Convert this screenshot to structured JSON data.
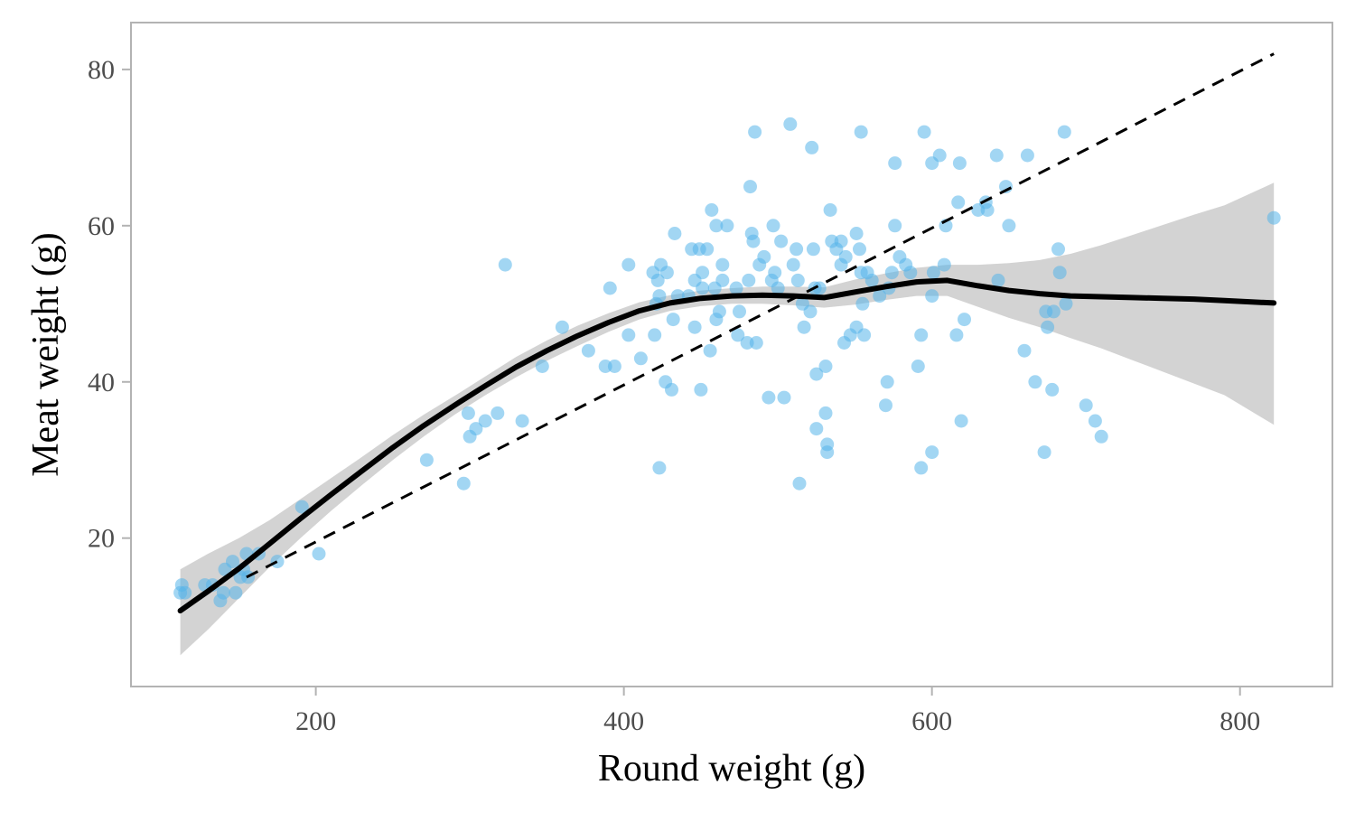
{
  "chart_data": {
    "type": "scatter",
    "title": "",
    "xlabel": "Round weight (g)",
    "ylabel": "Meat weight (g)",
    "xlim": [
      80,
      860
    ],
    "ylim": [
      1,
      86
    ],
    "xticks": [
      200,
      400,
      600,
      800
    ],
    "yticks": [
      20,
      40,
      60,
      80
    ],
    "grid": false,
    "legend": "none",
    "colors": {
      "points": "#56B4E9",
      "smooth": "#000000",
      "band": "#d3d3d3",
      "panel_border": "#b3b3b3",
      "tick_text": "#4d4d4d"
    },
    "points": [
      [
        112,
        13
      ],
      [
        113,
        14
      ],
      [
        115,
        13
      ],
      [
        128,
        14
      ],
      [
        133,
        14
      ],
      [
        138,
        12
      ],
      [
        140,
        13
      ],
      [
        141,
        16
      ],
      [
        146,
        17
      ],
      [
        148,
        13
      ],
      [
        151,
        15
      ],
      [
        153,
        16
      ],
      [
        155,
        18
      ],
      [
        156,
        15
      ],
      [
        163,
        18
      ],
      [
        175,
        17
      ],
      [
        191,
        24
      ],
      [
        202,
        18
      ],
      [
        272,
        30
      ],
      [
        296,
        27
      ],
      [
        299,
        36
      ],
      [
        300,
        33
      ],
      [
        304,
        34
      ],
      [
        310,
        35
      ],
      [
        318,
        36
      ],
      [
        323,
        55
      ],
      [
        334,
        35
      ],
      [
        347,
        42
      ],
      [
        360,
        47
      ],
      [
        377,
        44
      ],
      [
        388,
        42
      ],
      [
        391,
        52
      ],
      [
        394,
        42
      ],
      [
        403,
        46
      ],
      [
        403,
        55
      ],
      [
        411,
        43
      ],
      [
        419,
        54
      ],
      [
        420,
        46
      ],
      [
        421,
        50
      ],
      [
        422,
        53
      ],
      [
        423,
        51
      ],
      [
        423,
        29
      ],
      [
        424,
        55
      ],
      [
        427,
        40
      ],
      [
        428,
        54
      ],
      [
        431,
        39
      ],
      [
        432,
        48
      ],
      [
        433,
        59
      ],
      [
        435,
        51
      ],
      [
        442,
        51
      ],
      [
        444,
        57
      ],
      [
        446,
        53
      ],
      [
        446,
        47
      ],
      [
        449,
        57
      ],
      [
        450,
        39
      ],
      [
        451,
        54
      ],
      [
        451,
        52
      ],
      [
        454,
        57
      ],
      [
        456,
        44
      ],
      [
        457,
        62
      ],
      [
        459,
        52
      ],
      [
        460,
        48
      ],
      [
        460,
        60
      ],
      [
        462,
        49
      ],
      [
        464,
        55
      ],
      [
        464,
        53
      ],
      [
        467,
        60
      ],
      [
        473,
        52
      ],
      [
        474,
        46
      ],
      [
        475,
        49
      ],
      [
        480,
        45
      ],
      [
        481,
        53
      ],
      [
        482,
        65
      ],
      [
        483,
        59
      ],
      [
        484,
        58
      ],
      [
        485,
        72
      ],
      [
        486,
        45
      ],
      [
        488,
        55
      ],
      [
        491,
        56
      ],
      [
        494,
        38
      ],
      [
        496,
        53
      ],
      [
        497,
        60
      ],
      [
        498,
        54
      ],
      [
        500,
        52
      ],
      [
        502,
        58
      ],
      [
        504,
        38
      ],
      [
        508,
        73
      ],
      [
        510,
        55
      ],
      [
        512,
        57
      ],
      [
        513,
        53
      ],
      [
        514,
        27
      ],
      [
        516,
        50
      ],
      [
        517,
        47
      ],
      [
        521,
        49
      ],
      [
        522,
        70
      ],
      [
        523,
        57
      ],
      [
        524,
        52
      ],
      [
        525,
        34
      ],
      [
        525,
        41
      ],
      [
        527,
        52
      ],
      [
        531,
        36
      ],
      [
        531,
        42
      ],
      [
        532,
        31
      ],
      [
        532,
        32
      ],
      [
        534,
        62
      ],
      [
        535,
        58
      ],
      [
        538,
        57
      ],
      [
        541,
        58
      ],
      [
        541,
        55
      ],
      [
        543,
        45
      ],
      [
        544,
        56
      ],
      [
        547,
        46
      ],
      [
        551,
        47
      ],
      [
        551,
        59
      ],
      [
        553,
        57
      ],
      [
        554,
        72
      ],
      [
        554,
        54
      ],
      [
        555,
        50
      ],
      [
        556,
        46
      ],
      [
        558,
        54
      ],
      [
        561,
        53
      ],
      [
        566,
        51
      ],
      [
        570,
        37
      ],
      [
        571,
        40
      ],
      [
        572,
        52
      ],
      [
        574,
        54
      ],
      [
        576,
        68
      ],
      [
        576,
        60
      ],
      [
        579,
        56
      ],
      [
        583,
        55
      ],
      [
        586,
        54
      ],
      [
        591,
        42
      ],
      [
        593,
        29
      ],
      [
        593,
        46
      ],
      [
        595,
        72
      ],
      [
        600,
        31
      ],
      [
        600,
        68
      ],
      [
        600,
        51
      ],
      [
        601,
        54
      ],
      [
        605,
        69
      ],
      [
        608,
        55
      ],
      [
        609,
        60
      ],
      [
        616,
        46
      ],
      [
        617,
        63
      ],
      [
        618,
        68
      ],
      [
        619,
        35
      ],
      [
        621,
        48
      ],
      [
        630,
        62
      ],
      [
        635,
        63
      ],
      [
        636,
        62
      ],
      [
        642,
        69
      ],
      [
        643,
        53
      ],
      [
        648,
        65
      ],
      [
        650,
        60
      ],
      [
        660,
        44
      ],
      [
        662,
        69
      ],
      [
        667,
        40
      ],
      [
        673,
        31
      ],
      [
        674,
        49
      ],
      [
        675,
        47
      ],
      [
        678,
        39
      ],
      [
        679,
        49
      ],
      [
        682,
        57
      ],
      [
        683,
        54
      ],
      [
        686,
        72
      ],
      [
        687,
        50
      ],
      [
        700,
        37
      ],
      [
        706,
        35
      ],
      [
        710,
        33
      ],
      [
        822,
        61
      ]
    ],
    "smooth": {
      "x": [
        112,
        130,
        150,
        170,
        190,
        210,
        230,
        250,
        270,
        290,
        310,
        330,
        350,
        370,
        390,
        410,
        430,
        450,
        470,
        490,
        510,
        530,
        550,
        570,
        590,
        610,
        630,
        650,
        670,
        690,
        710,
        730,
        750,
        770,
        790,
        822
      ],
      "y": [
        10.7,
        13.2,
        16.1,
        19.3,
        22.5,
        25.6,
        28.6,
        31.6,
        34.4,
        37.0,
        39.5,
        41.9,
        44.0,
        45.9,
        47.6,
        49.1,
        50.1,
        50.7,
        51.0,
        51.1,
        51.0,
        50.8,
        51.5,
        52.2,
        52.8,
        53.0,
        52.3,
        51.7,
        51.3,
        51.0,
        50.9,
        50.8,
        50.7,
        50.6,
        50.4,
        50.1
      ],
      "lower": [
        5.0,
        8.3,
        12.3,
        16.3,
        20.0,
        23.5,
        26.8,
        30.0,
        33.0,
        35.8,
        38.3,
        40.6,
        42.7,
        44.6,
        46.4,
        48.0,
        49.1,
        49.7,
        50.0,
        50.0,
        49.8,
        49.5,
        49.9,
        50.5,
        51.0,
        51.0,
        49.6,
        48.2,
        47.0,
        45.6,
        44.3,
        42.8,
        41.3,
        39.8,
        38.3,
        34.5
      ],
      "upper": [
        16.0,
        18.0,
        20.0,
        22.3,
        25.0,
        27.7,
        30.4,
        33.2,
        35.8,
        38.2,
        40.7,
        43.2,
        45.3,
        47.2,
        48.8,
        50.2,
        51.1,
        51.7,
        52.0,
        52.2,
        52.2,
        52.1,
        53.1,
        53.9,
        54.6,
        55.0,
        55.0,
        55.2,
        55.6,
        56.4,
        57.5,
        58.8,
        60.1,
        61.4,
        62.6,
        65.5
      ]
    },
    "reference_line": {
      "style": "dashed",
      "x": [
        155,
        822
      ],
      "y": [
        15,
        82
      ]
    }
  }
}
